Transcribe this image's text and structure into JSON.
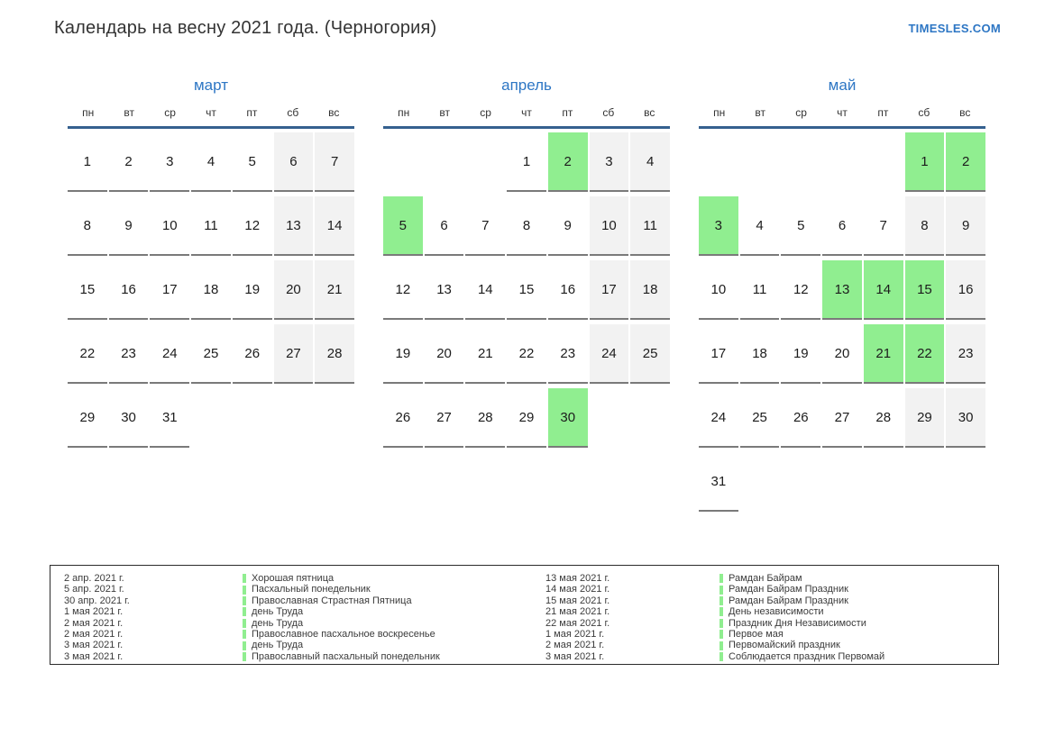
{
  "header": {
    "title": "Календарь на весну 2021 года. (Черногория)",
    "brand": "TIMESLES.COM"
  },
  "weekday_headers": [
    "пн",
    "вт",
    "ср",
    "чт",
    "пт",
    "сб",
    "вс"
  ],
  "months": [
    {
      "name": "март",
      "holidays": [],
      "weeks": [
        [
          1,
          2,
          3,
          4,
          5,
          6,
          7
        ],
        [
          8,
          9,
          10,
          11,
          12,
          13,
          14
        ],
        [
          15,
          16,
          17,
          18,
          19,
          20,
          21
        ],
        [
          22,
          23,
          24,
          25,
          26,
          27,
          28
        ],
        [
          29,
          30,
          31,
          null,
          null,
          null,
          null
        ]
      ]
    },
    {
      "name": "апрель",
      "holidays": [
        2,
        5,
        30
      ],
      "weeks": [
        [
          null,
          null,
          null,
          1,
          2,
          3,
          4
        ],
        [
          5,
          6,
          7,
          8,
          9,
          10,
          11
        ],
        [
          12,
          13,
          14,
          15,
          16,
          17,
          18
        ],
        [
          19,
          20,
          21,
          22,
          23,
          24,
          25
        ],
        [
          26,
          27,
          28,
          29,
          30,
          null,
          null
        ]
      ]
    },
    {
      "name": "май",
      "holidays": [
        1,
        2,
        3,
        13,
        14,
        15,
        21,
        22
      ],
      "weeks": [
        [
          null,
          null,
          null,
          null,
          null,
          1,
          2
        ],
        [
          3,
          4,
          5,
          6,
          7,
          8,
          9
        ],
        [
          10,
          11,
          12,
          13,
          14,
          15,
          16
        ],
        [
          17,
          18,
          19,
          20,
          21,
          22,
          23
        ],
        [
          24,
          25,
          26,
          27,
          28,
          29,
          30
        ],
        [
          31,
          null,
          null,
          null,
          null,
          null,
          null
        ]
      ]
    }
  ],
  "legend": {
    "columns": [
      {
        "items": [
          {
            "date": "2 апр. 2021 г.",
            "name": "Хорошая пятница"
          },
          {
            "date": "5 апр. 2021 г.",
            "name": "Пасхальный понедельник"
          },
          {
            "date": "30 апр. 2021 г.",
            "name": "Православная Страстная Пятница"
          },
          {
            "date": "1 мая 2021 г.",
            "name": "день Труда"
          },
          {
            "date": "2 мая 2021 г.",
            "name": "день Труда"
          },
          {
            "date": "2 мая 2021 г.",
            "name": "Православное пасхальное воскресенье"
          },
          {
            "date": "3 мая 2021 г.",
            "name": "день Труда"
          },
          {
            "date": "3 мая 2021 г.",
            "name": "Православный пасхальный понедельник"
          }
        ]
      },
      {
        "items": [
          {
            "date": "13 мая 2021 г.",
            "name": "Рамдан Байрам"
          },
          {
            "date": "14 мая 2021 г.",
            "name": "Рамдан Байрам Праздник"
          },
          {
            "date": "15 мая 2021 г.",
            "name": "Рамдан Байрам Праздник"
          },
          {
            "date": "21 мая 2021 г.",
            "name": "День независимости"
          },
          {
            "date": "22 мая 2021 г.",
            "name": "Праздник Дня Независимости"
          },
          {
            "date": "1 мая 2021 г.",
            "name": "Первое мая"
          },
          {
            "date": "2 мая 2021 г.",
            "name": "Первомайский праздник"
          },
          {
            "date": "3 мая 2021 г.",
            "name": "Соблюдается праздник Первомай"
          }
        ]
      }
    ]
  },
  "colors": {
    "accent_blue": "#2D76C4",
    "header_line_blue": "#35618F",
    "holiday_green": "#90EE90",
    "weekend_gray": "#F2F2F2",
    "cell_line_gray": "#7A7A7A"
  }
}
